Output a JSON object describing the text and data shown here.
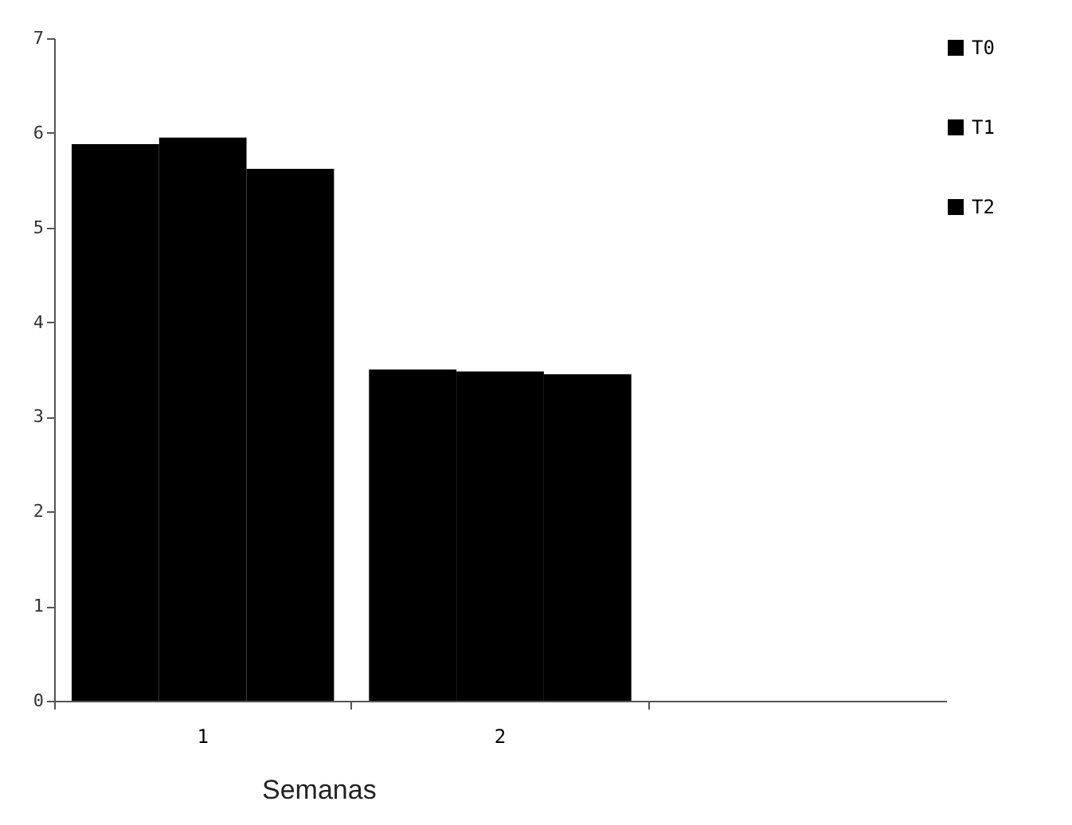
{
  "chart_data": {
    "type": "bar",
    "xlabel": "Semanas",
    "categories": [
      "1",
      "2",
      null
    ],
    "series": [
      {
        "name": "T0",
        "color": "#000000",
        "values": [
          5.88,
          3.5,
          null
        ]
      },
      {
        "name": "T1",
        "color": "#000000",
        "values": [
          5.95,
          3.48,
          null
        ]
      },
      {
        "name": "T2",
        "color": "#000000",
        "values": [
          5.62,
          3.45,
          null
        ]
      }
    ],
    "ylim": [
      0,
      7
    ],
    "yticks": [
      0,
      1,
      2,
      3,
      4,
      5,
      6,
      7
    ],
    "grid": false,
    "legend": "right"
  }
}
